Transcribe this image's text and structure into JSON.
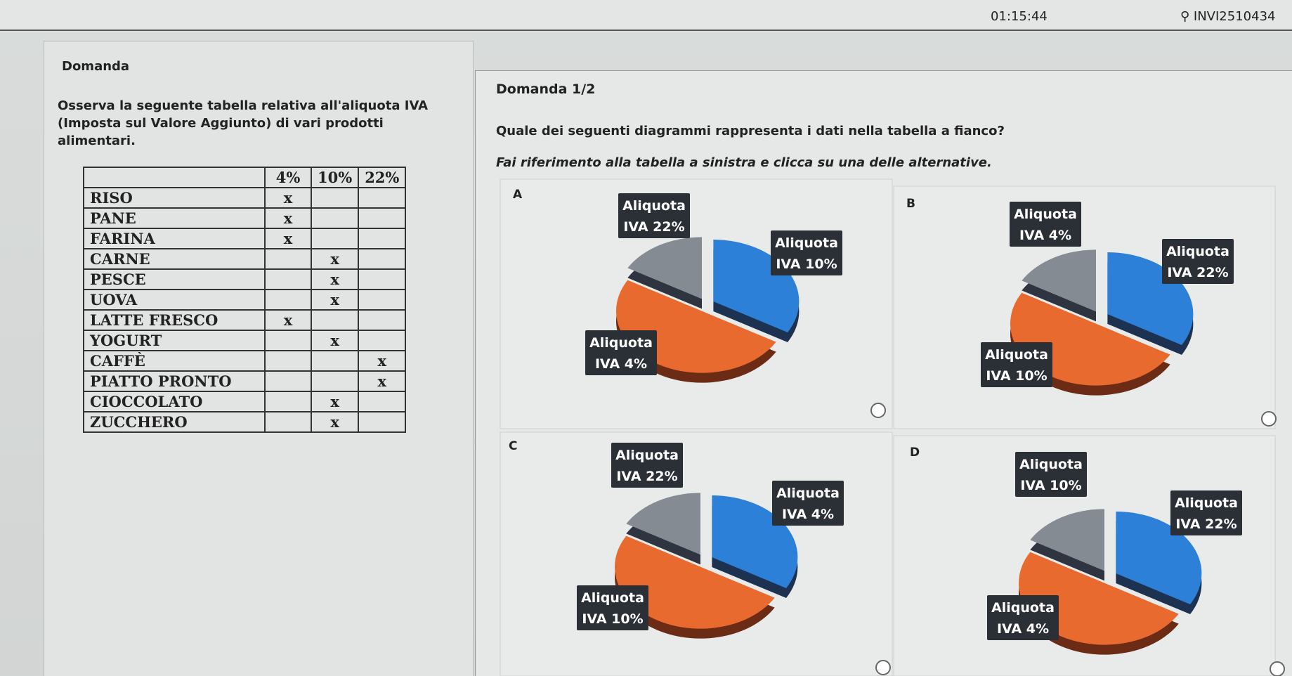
{
  "header": {
    "timer": "01:15:44",
    "user": "INVI2510434"
  },
  "left": {
    "heading": "Domanda",
    "text": "Osserva la seguente tabella relativa all'aliquota IVA (Imposta sul Valore Aggiunto) di vari prodotti alimentari.",
    "table": {
      "headers": [
        "4%",
        "10%",
        "22%"
      ],
      "rows": [
        [
          "RISO",
          "x",
          null,
          null
        ],
        [
          "PANE",
          "x",
          null,
          null
        ],
        [
          "FARINA",
          "x",
          null,
          null
        ],
        [
          "CARNE",
          null,
          "x",
          null
        ],
        [
          "PESCE",
          null,
          "x",
          null
        ],
        [
          "UOVA",
          null,
          "x",
          null
        ],
        [
          "LATTE FRESCO",
          "x",
          null,
          null
        ],
        [
          "YOGURT",
          null,
          "x",
          null
        ],
        [
          "CAFFÈ",
          null,
          null,
          "x"
        ],
        [
          "PIATTO PRONTO",
          null,
          null,
          "x"
        ],
        [
          "CIOCCOLATO",
          null,
          "x",
          null
        ],
        [
          "ZUCCHERO",
          null,
          "x",
          null
        ]
      ]
    }
  },
  "right": {
    "heading": "Domanda 1/2",
    "question": "Quale dei seguenti diagrammi rappresenta i dati nella tabella a fianco?",
    "instruction": "Fai riferimento alla tabella a sinistra e clicca su una delle alternative.",
    "options": [
      {
        "letter": "A",
        "labels": [
          [
            "Aliquota",
            "IVA 22%"
          ],
          [
            "Aliquota",
            "IVA 10%"
          ],
          [
            "Aliquota",
            "IVA 4%"
          ]
        ]
      },
      {
        "letter": "B",
        "labels": [
          [
            "Aliquota",
            "IVA 4%"
          ],
          [
            "Aliquota",
            "IVA 22%"
          ],
          [
            "Aliquota",
            "IVA 10%"
          ]
        ]
      },
      {
        "letter": "C",
        "labels": [
          [
            "Aliquota",
            "IVA 22%"
          ],
          [
            "Aliquota",
            "IVA 4%"
          ],
          [
            "Aliquota",
            "IVA 10%"
          ]
        ]
      },
      {
        "letter": "D",
        "labels": [
          [
            "Aliquota",
            "IVA 10%"
          ],
          [
            "Aliquota",
            "IVA 22%"
          ],
          [
            "Aliquota",
            "IVA 4%"
          ]
        ]
      }
    ]
  }
}
